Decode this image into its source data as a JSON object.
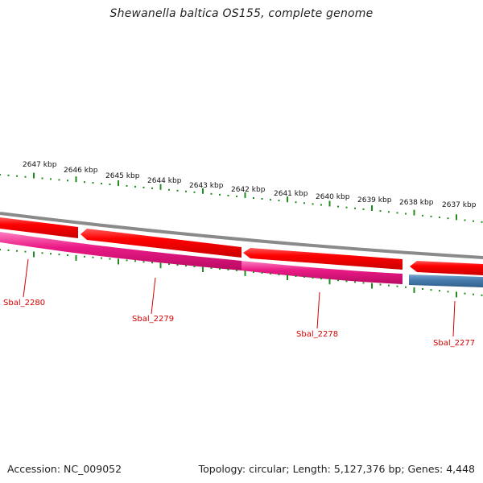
{
  "title": "Shewanella baltica OS155, complete genome",
  "scale_labels": [
    "2647 kbp",
    "2646 kbp",
    "2645 kbp",
    "2644 kbp",
    "2643 kbp",
    "2642 kbp",
    "2641 kbp",
    "2640 kbp",
    "2639 kbp",
    "2638 kbp",
    "2637 kbp"
  ],
  "genes": [
    {
      "label": "Sbal_2280"
    },
    {
      "label": "Sbal_2279"
    },
    {
      "label": "Sbal_2278"
    },
    {
      "label": "Sbal_2277"
    }
  ],
  "footer": {
    "accession": "Accession: NC_009052",
    "summary": "Topology: circular; Length: 5,127,376 bp; Genes: 4,448"
  },
  "colors": {
    "backbone": "#8a8a8a",
    "cds_forward": "#ff0000",
    "gene_pink": "#e8157f",
    "gene_blue": "#4a7fb0",
    "ticks": "#1e8c1e",
    "gene_label": "#d40000"
  }
}
